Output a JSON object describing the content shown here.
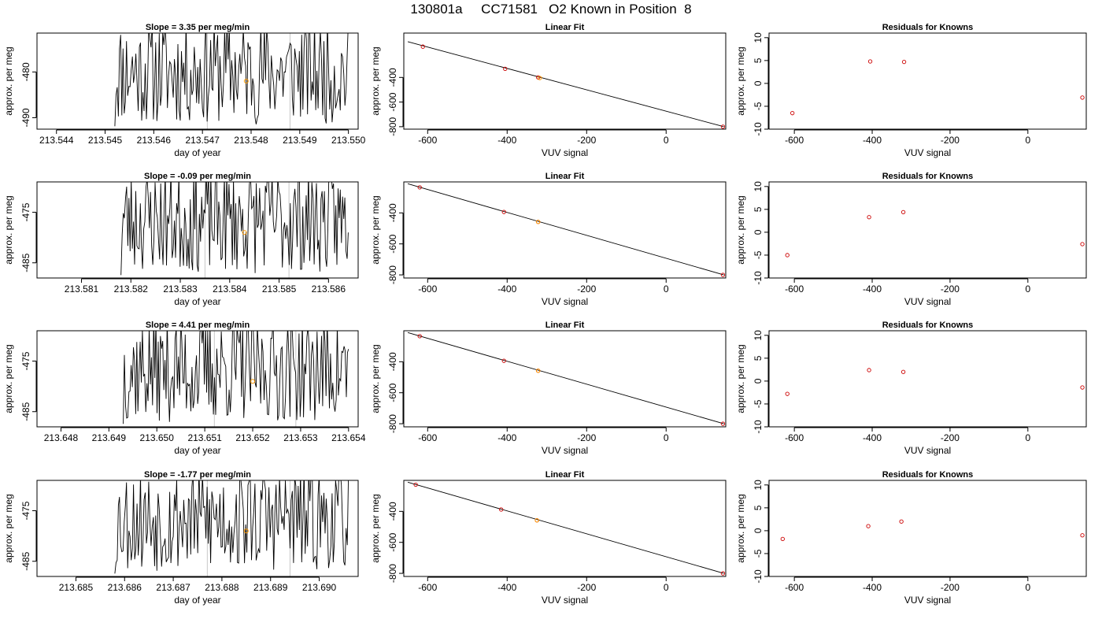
{
  "figure_title": "130801a     CC71581   O2 Known in Position  8",
  "chart_data": [
    {
      "type": "line",
      "title": "Slope =  3.35  per meg/min",
      "xlabel": "day of year",
      "ylabel": "approx. per meg",
      "xlim": [
        213.5436,
        213.5502
      ],
      "ylim": [
        -492.5,
        -471.5
      ],
      "xticks": [
        213.544,
        213.545,
        213.546,
        213.547,
        213.548,
        213.549,
        213.55
      ],
      "xtick_labels": [
        "213.544",
        "213.545",
        "213.546",
        "213.547",
        "213.548",
        "213.549",
        "213.550"
      ],
      "yticks": [
        -490,
        -480
      ],
      "ytick_labels": [
        "-490",
        "-480"
      ],
      "vlines": [
        213.5471,
        213.5488
      ],
      "marker": {
        "x": 213.5479,
        "y": -482
      },
      "x_start": 213.5452,
      "x_end": 213.55,
      "seed": 11
    },
    {
      "type": "line",
      "title": "Linear Fit",
      "xlabel": "VUV signal",
      "ylabel": "approx. per meg",
      "xlim": [
        -660,
        150
      ],
      "ylim": [
        -820,
        -40
      ],
      "xticks": [
        -600,
        -400,
        -200,
        0
      ],
      "xtick_labels": [
        "-600",
        "-400",
        "-200",
        "0"
      ],
      "yticks": [
        -800,
        -600,
        -400
      ],
      "ytick_labels": [
        "-800",
        "-600",
        "-400"
      ],
      "fit_line": [
        [
          -650,
          -110
        ],
        [
          145,
          -800
        ]
      ],
      "points": [
        [
          -612,
          -150
        ],
        [
          -405,
          -330
        ],
        [
          -322,
          -400
        ],
        [
          143,
          -800
        ]
      ],
      "highlight": [
        -318,
        -405
      ]
    },
    {
      "type": "scatter",
      "title": "Residuals for Knowns",
      "xlabel": "VUV signal",
      "ylabel": "approx. per meg",
      "xlim": [
        -665,
        150
      ],
      "ylim": [
        -10,
        11
      ],
      "xticks": [
        -600,
        -400,
        -200,
        0
      ],
      "xtick_labels": [
        "-600",
        "-400",
        "-200",
        "0"
      ],
      "yticks": [
        -10,
        -5,
        0,
        5,
        10
      ],
      "ytick_labels": [
        "-10",
        "-5",
        "0",
        "5",
        "10"
      ],
      "points": [
        [
          -605,
          -6.5
        ],
        [
          -405,
          4.8
        ],
        [
          -318,
          4.7
        ],
        [
          140,
          -3.1
        ]
      ]
    },
    {
      "type": "line",
      "title": "Slope =  -0.09  per meg/min",
      "xlabel": "day of year",
      "ylabel": "approx. per meg",
      "xlim": [
        213.5801,
        213.5866
      ],
      "ylim": [
        -488,
        -469
      ],
      "xticks": [
        213.581,
        213.582,
        213.583,
        213.584,
        213.585,
        213.586
      ],
      "xtick_labels": [
        "213.581",
        "213.582",
        "213.583",
        "213.584",
        "213.585",
        "213.586"
      ],
      "yticks": [
        -485,
        -475
      ],
      "ytick_labels": [
        "-485",
        "-475"
      ],
      "vlines": [
        213.5835,
        213.5852
      ],
      "marker": {
        "x": 213.5843,
        "y": -479
      },
      "x_start": 213.5818,
      "x_end": 213.5864,
      "seed": 23
    },
    {
      "type": "line",
      "title": "Linear Fit",
      "xlabel": "VUV signal",
      "ylabel": "approx. per meg",
      "xlim": [
        -660,
        150
      ],
      "ylim": [
        -820,
        -200
      ],
      "xticks": [
        -600,
        -400,
        -200,
        0
      ],
      "xtick_labels": [
        "-600",
        "-400",
        "-200",
        "0"
      ],
      "yticks": [
        -800,
        -600,
        -400
      ],
      "ytick_labels": [
        "-800",
        "-600",
        "-400"
      ],
      "fit_line": [
        [
          -650,
          -212
        ],
        [
          145,
          -800
        ]
      ],
      "points": [
        [
          -620,
          -235
        ],
        [
          -408,
          -394
        ],
        [
          -322,
          -458
        ],
        [
          143,
          -800
        ]
      ],
      "highlight": [
        -322,
        -458
      ]
    },
    {
      "type": "scatter",
      "title": "Residuals for Knowns",
      "xlabel": "VUV signal",
      "ylabel": "approx. per meg",
      "xlim": [
        -665,
        150
      ],
      "ylim": [
        -10,
        11
      ],
      "xticks": [
        -600,
        -400,
        -200,
        0
      ],
      "xtick_labels": [
        "-600",
        "-400",
        "-200",
        "0"
      ],
      "yticks": [
        -10,
        -5,
        0,
        5,
        10
      ],
      "ytick_labels": [
        "-10",
        "-5",
        "0",
        "5",
        "10"
      ],
      "points": [
        [
          -618,
          -5
        ],
        [
          -408,
          3.3
        ],
        [
          -320,
          4.4
        ],
        [
          140,
          -2.6
        ]
      ]
    },
    {
      "type": "line",
      "title": "Slope =  4.41  per meg/min",
      "xlabel": "day of year",
      "ylabel": "approx. per meg",
      "xlim": [
        213.6475,
        213.6542
      ],
      "ylim": [
        -488,
        -469
      ],
      "xticks": [
        213.648,
        213.649,
        213.65,
        213.651,
        213.652,
        213.653,
        213.654
      ],
      "xtick_labels": [
        "213.648",
        "213.649",
        "213.650",
        "213.651",
        "213.652",
        "213.653",
        "213.654"
      ],
      "yticks": [
        -485,
        -475
      ],
      "ytick_labels": [
        "-485",
        "-475"
      ],
      "vlines": [
        213.6512,
        213.6529
      ],
      "marker": {
        "x": 213.652,
        "y": -479
      },
      "x_start": 213.6493,
      "x_end": 213.654,
      "seed": 37
    },
    {
      "type": "line",
      "title": "Linear Fit",
      "xlabel": "VUV signal",
      "ylabel": "approx. per meg",
      "xlim": [
        -660,
        150
      ],
      "ylim": [
        -820,
        -200
      ],
      "xticks": [
        -600,
        -400,
        -200,
        0
      ],
      "xtick_labels": [
        "-600",
        "-400",
        "-200",
        "0"
      ],
      "yticks": [
        -800,
        -600,
        -400
      ],
      "ytick_labels": [
        "-800",
        "-600",
        "-400"
      ],
      "fit_line": [
        [
          -650,
          -212
        ],
        [
          145,
          -800
        ]
      ],
      "points": [
        [
          -620,
          -235
        ],
        [
          -408,
          -394
        ],
        [
          -322,
          -458
        ],
        [
          143,
          -800
        ]
      ],
      "highlight": [
        -322,
        -458
      ]
    },
    {
      "type": "scatter",
      "title": "Residuals for Knowns",
      "xlabel": "VUV signal",
      "ylabel": "approx. per meg",
      "xlim": [
        -665,
        150
      ],
      "ylim": [
        -10,
        11
      ],
      "xticks": [
        -600,
        -400,
        -200,
        0
      ],
      "xtick_labels": [
        "-600",
        "-400",
        "-200",
        "0"
      ],
      "yticks": [
        -10,
        -5,
        0,
        5,
        10
      ],
      "ytick_labels": [
        "-10",
        "-5",
        "0",
        "5",
        "10"
      ],
      "points": [
        [
          -618,
          -2.8
        ],
        [
          -408,
          2.4
        ],
        [
          -320,
          2
        ],
        [
          140,
          -1.4
        ]
      ]
    },
    {
      "type": "line",
      "title": "Slope =  -1.77  per meg/min",
      "xlabel": "day of year",
      "ylabel": "approx. per meg",
      "xlim": [
        213.6842,
        213.6908
      ],
      "ylim": [
        -488,
        -469
      ],
      "xticks": [
        213.685,
        213.686,
        213.687,
        213.688,
        213.689,
        213.69
      ],
      "xtick_labels": [
        "213.685",
        "213.686",
        "213.687",
        "213.688",
        "213.689",
        "213.690"
      ],
      "yticks": [
        -485,
        -475
      ],
      "ytick_labels": [
        "-485",
        "-475"
      ],
      "vlines": [
        213.6877,
        213.6894
      ],
      "marker": {
        "x": 213.6885,
        "y": -479
      },
      "x_start": 213.6858,
      "x_end": 213.6906,
      "seed": 53
    },
    {
      "type": "line",
      "title": "Linear Fit",
      "xlabel": "VUV signal",
      "ylabel": "approx. per meg",
      "xlim": [
        -660,
        150
      ],
      "ylim": [
        -820,
        -200
      ],
      "xticks": [
        -600,
        -400,
        -200,
        0
      ],
      "xtick_labels": [
        "-600",
        "-400",
        "-200",
        "0"
      ],
      "yticks": [
        -800,
        -600,
        -400
      ],
      "ytick_labels": [
        "-800",
        "-600",
        "-400"
      ],
      "fit_line": [
        [
          -650,
          -212
        ],
        [
          145,
          -800
        ]
      ],
      "points": [
        [
          -630,
          -228
        ],
        [
          -415,
          -388
        ],
        [
          -325,
          -458
        ],
        [
          143,
          -800
        ]
      ],
      "highlight": [
        -325,
        -458
      ]
    },
    {
      "type": "scatter",
      "title": "Residuals for Knowns",
      "xlabel": "VUV signal",
      "ylabel": "approx. per meg",
      "xlim": [
        -665,
        150
      ],
      "ylim": [
        -10,
        11
      ],
      "xticks": [
        -600,
        -400,
        -200,
        0
      ],
      "xtick_labels": [
        "-600",
        "-400",
        "-200",
        "0"
      ],
      "yticks": [
        -10,
        -5,
        0,
        5,
        10
      ],
      "ytick_labels": [
        "-10",
        "-5",
        "0",
        "5",
        "10"
      ],
      "points": [
        [
          -630,
          -1.8
        ],
        [
          -410,
          1
        ],
        [
          -325,
          2
        ],
        [
          140,
          -1
        ]
      ]
    }
  ]
}
